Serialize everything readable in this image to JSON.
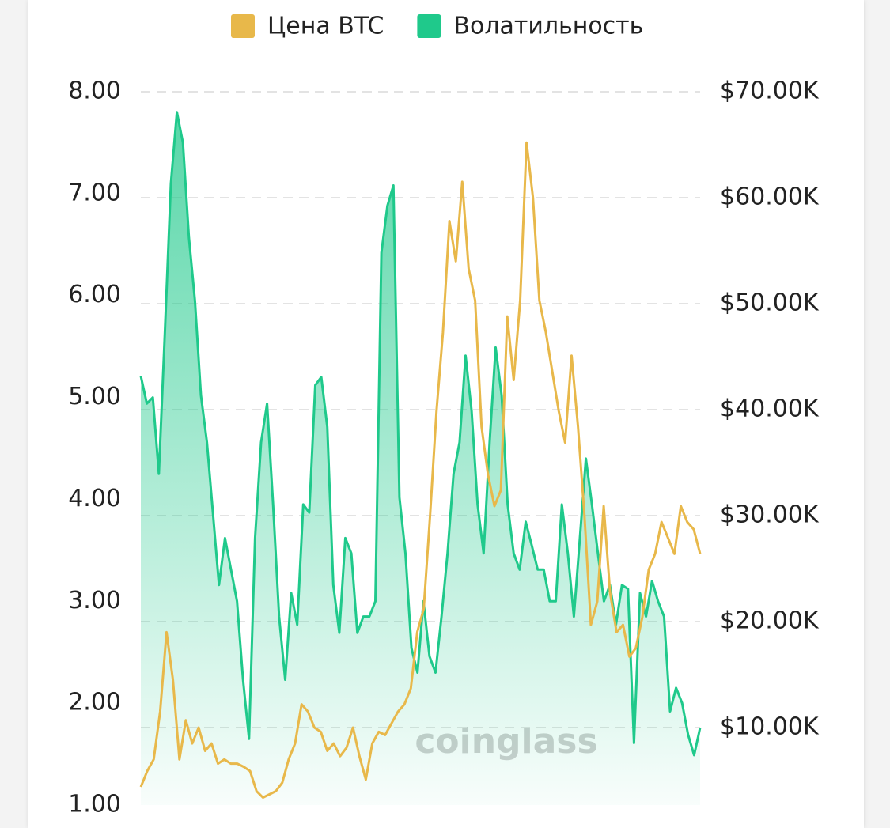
{
  "chart_data": {
    "type": "line",
    "watermark": "coinglass",
    "series": [
      {
        "name": "Цена BTC",
        "color": "#e8b84a",
        "axis": "y2",
        "values": [
          4400,
          5900,
          7000,
          11500,
          19000,
          14500,
          7000,
          10700,
          8500,
          10000,
          7800,
          8500,
          6600,
          7000,
          6600,
          6600,
          6300,
          5900,
          4000,
          3400,
          3700,
          4000,
          4800,
          7000,
          8500,
          12200,
          11500,
          10000,
          9600,
          7800,
          8500,
          7300,
          8100,
          10000,
          7300,
          5100,
          8500,
          9600,
          9300,
          10400,
          11500,
          12200,
          13700,
          19000,
          21200,
          30100,
          39900,
          47300,
          57800,
          54000,
          61500,
          53300,
          50300,
          38400,
          33900,
          30900,
          32400,
          48800,
          42800,
          50300,
          65200,
          60000,
          50300,
          47300,
          43600,
          39900,
          36900,
          45100,
          38400,
          30100,
          19700,
          21900,
          30900,
          22700,
          19000,
          19700,
          16700,
          17500,
          20400,
          24900,
          26400,
          29400,
          27900,
          26400,
          30900,
          29400,
          28700,
          26400
        ]
      },
      {
        "name": "Волатильность",
        "color": "#1fc98b",
        "axis": "y",
        "values": [
          5.21,
          4.94,
          5.0,
          4.25,
          5.64,
          7.1,
          7.8,
          7.5,
          6.57,
          5.95,
          5.02,
          4.56,
          3.86,
          3.16,
          3.62,
          3.31,
          3.0,
          2.23,
          1.65,
          3.62,
          4.56,
          4.94,
          3.95,
          2.85,
          2.23,
          3.08,
          2.77,
          3.95,
          3.87,
          5.12,
          5.2,
          4.71,
          3.16,
          2.69,
          3.62,
          3.47,
          2.69,
          2.85,
          2.85,
          3.0,
          6.42,
          6.88,
          7.08,
          4.02,
          3.47,
          2.54,
          2.3,
          3.0,
          2.46,
          2.3,
          2.85,
          3.47,
          4.25,
          4.56,
          5.41,
          4.87,
          3.95,
          3.47,
          4.56,
          5.49,
          5.02,
          3.95,
          3.47,
          3.31,
          3.78,
          3.55,
          3.31,
          3.31,
          3.0,
          3.0,
          3.95,
          3.47,
          2.85,
          3.62,
          4.4,
          3.95,
          3.47,
          3.0,
          3.16,
          2.77,
          3.16,
          3.12,
          1.61,
          3.08,
          2.85,
          3.2,
          3.0,
          2.85,
          1.92,
          2.15,
          2.0,
          1.69,
          1.49,
          1.76
        ]
      }
    ],
    "ylim": [
      1,
      8
    ],
    "yticks": [
      {
        "value": 1,
        "label": "1.00"
      },
      {
        "value": 2,
        "label": "2.00"
      },
      {
        "value": 3,
        "label": "3.00"
      },
      {
        "value": 4,
        "label": "4.00"
      },
      {
        "value": 5,
        "label": "5.00"
      },
      {
        "value": 6,
        "label": "6.00"
      },
      {
        "value": 7,
        "label": "7.00"
      },
      {
        "value": 8,
        "label": "8.00"
      }
    ],
    "y2lim": [
      2690,
      70000
    ],
    "y2ticks": [
      {
        "value": 10000,
        "label": "$10.00K"
      },
      {
        "value": 20000,
        "label": "$20.00K"
      },
      {
        "value": 30000,
        "label": "$30.00K"
      },
      {
        "value": 40000,
        "label": "$40.00K"
      },
      {
        "value": 50000,
        "label": "$50.00K"
      },
      {
        "value": 60000,
        "label": "$60.00K"
      },
      {
        "value": 70000,
        "label": "$70.00K"
      }
    ],
    "grid": true
  }
}
